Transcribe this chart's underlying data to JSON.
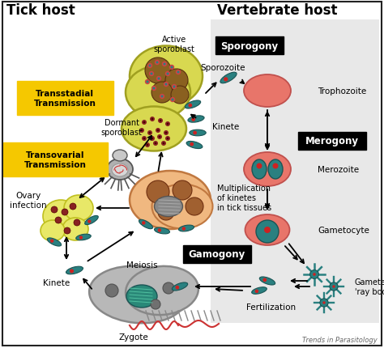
{
  "title_left": "Tick host",
  "title_right": "Vertebrate host",
  "watermark": "Trends in Parasitology",
  "bg_color": "#ffffff",
  "right_bg_color": "#cccccc",
  "labels": {
    "sporogony": "Sporogony",
    "merogony": "Merogony",
    "gamogony": "Gamogony",
    "transstadial": "Transstadial\nTransmission",
    "transovarial": "Transovarial\nTransmission",
    "active_sporoblast": "Active\nsporoblast",
    "dormant_sporoblast": "Dormant\nsporoblast",
    "kinete": "Kinete",
    "sporozoite": "Sporozoite",
    "trophozoite": "Trophozoite",
    "merozoite": "Merozoite",
    "gametocyte": "Gametocyte",
    "gametes": "Gametes\n'ray bodies'",
    "fertilization": "Fertilization",
    "zygote": "Zygote",
    "meiosis": "Meiosis",
    "ovary_infection": "Ovary\ninfection",
    "multiplication": "Multiplication\nof kinetes\nin tick tissues"
  },
  "colors": {
    "yellow_label_bg": "#f5c800",
    "rbc_fill": "#e8756a",
    "rbc_stroke": "#c0504d",
    "teal_parasite": "#2a8080",
    "teal_dark": "#1a5555",
    "red_nucleus": "#cc2222",
    "sporoblast_yellow": "#d8d850",
    "sporoblast_stroke": "#a0a020",
    "brown_inside": "#885522",
    "tick_tissue_fill": "#f0b880",
    "tick_tissue_stroke": "#c07840",
    "gray_cell": "#b8b8b8",
    "gray_cell_stroke": "#888888",
    "ovary_yellow": "#e8e868",
    "ovary_stroke": "#c0c020",
    "tick_gray": "#909090",
    "tick_dark": "#555555"
  }
}
